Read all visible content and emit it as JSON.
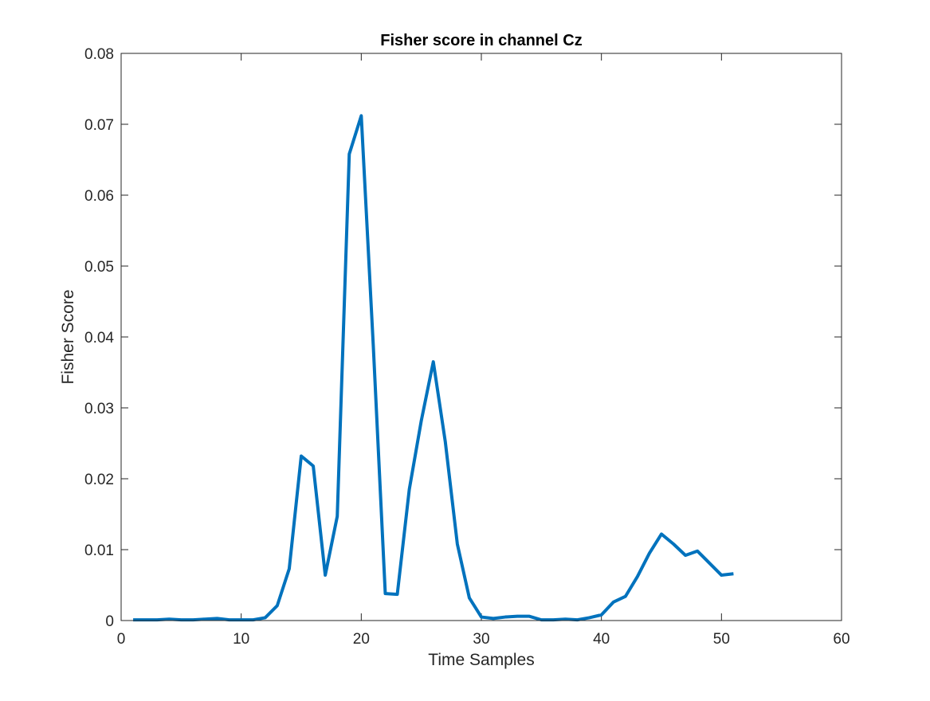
{
  "chart_data": {
    "type": "line",
    "title": "Fisher score in channel Cz",
    "xlabel": "Time Samples",
    "ylabel": "Fisher Score",
    "xlim": [
      0,
      60
    ],
    "ylim": [
      0,
      0.08
    ],
    "xticks": [
      0,
      10,
      20,
      30,
      40,
      50,
      60
    ],
    "xtick_labels": [
      "0",
      "10",
      "20",
      "30",
      "40",
      "50",
      "60"
    ],
    "yticks": [
      0,
      0.01,
      0.02,
      0.03,
      0.04,
      0.05,
      0.06,
      0.07,
      0.08
    ],
    "ytick_labels": [
      "0",
      "0.01",
      "0.02",
      "0.03",
      "0.04",
      "0.05",
      "0.06",
      "0.07",
      "0.08"
    ],
    "grid": false,
    "legend": false,
    "series": [
      {
        "color": "#0072BD",
        "x": [
          1,
          2,
          3,
          4,
          5,
          6,
          7,
          8,
          9,
          10,
          11,
          12,
          13,
          14,
          15,
          16,
          17,
          18,
          19,
          20,
          21,
          22,
          23,
          24,
          25,
          26,
          27,
          28,
          29,
          30,
          31,
          32,
          33,
          34,
          35,
          36,
          37,
          38,
          39,
          40,
          41,
          42,
          43,
          44,
          45,
          46,
          47,
          48,
          49,
          50,
          51
        ],
        "y": [
          0.0001,
          0.0001,
          0.0001,
          0.0002,
          0.0001,
          0.0001,
          0.0002,
          0.0003,
          0.0001,
          0.0001,
          0.0001,
          0.0004,
          0.0021,
          0.0073,
          0.0232,
          0.0218,
          0.0064,
          0.0147,
          0.0658,
          0.0712,
          0.0388,
          0.0038,
          0.0037,
          0.0185,
          0.0282,
          0.0365,
          0.0252,
          0.0108,
          0.0032,
          0.0005,
          0.0003,
          0.0005,
          0.0006,
          0.0006,
          0.0001,
          0.0001,
          0.0002,
          0.0001,
          0.0004,
          0.0008,
          0.0026,
          0.0034,
          0.0062,
          0.0095,
          0.0122,
          0.0108,
          0.0092,
          0.0098,
          0.0081,
          0.0064,
          0.0066
        ]
      }
    ]
  }
}
